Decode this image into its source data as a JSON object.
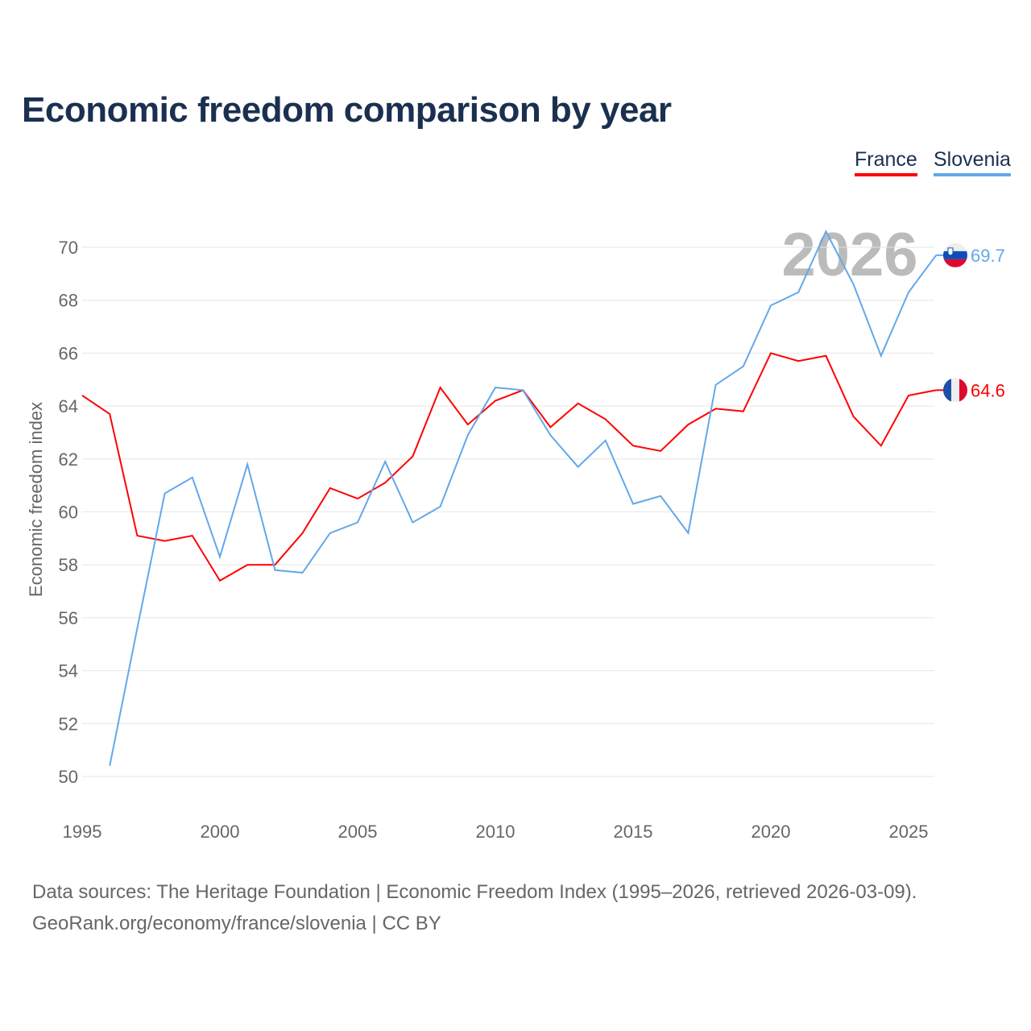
{
  "title": "Economic freedom comparison by year",
  "source_line1": "Data sources: The Heritage Foundation | Economic Freedom Index (1995–2026, retrieved 2026-03-09).",
  "source_line2": "GeoRank.org/economy/france/slovenia | CC BY",
  "chart_data": {
    "type": "line",
    "title": "Economic freedom comparison by year",
    "xlabel": "",
    "ylabel": "Economic freedom index",
    "xlim": [
      1995,
      2026
    ],
    "ylim": [
      50,
      70
    ],
    "xticks": [
      1995,
      2000,
      2005,
      2010,
      2015,
      2020,
      2025
    ],
    "yticks": [
      50,
      52,
      54,
      56,
      58,
      60,
      62,
      64,
      66,
      68,
      70
    ],
    "year_watermark": "2026",
    "legend": "top-right",
    "series": [
      {
        "name": "France",
        "color": "#ff0000",
        "end_label": "64.6",
        "x": [
          1995,
          1996,
          1997,
          1998,
          1999,
          2000,
          2001,
          2002,
          2003,
          2004,
          2005,
          2006,
          2007,
          2008,
          2009,
          2010,
          2011,
          2012,
          2013,
          2014,
          2015,
          2016,
          2017,
          2018,
          2019,
          2020,
          2021,
          2022,
          2023,
          2024,
          2025,
          2026
        ],
        "values": [
          64.4,
          63.7,
          59.1,
          58.9,
          59.1,
          57.4,
          58.0,
          58.0,
          59.2,
          60.9,
          60.5,
          61.1,
          62.1,
          64.7,
          63.3,
          64.2,
          64.6,
          63.2,
          64.1,
          63.5,
          62.5,
          62.3,
          63.3,
          63.9,
          63.8,
          66.0,
          65.7,
          65.9,
          63.6,
          62.5,
          64.4,
          64.6
        ]
      },
      {
        "name": "Slovenia",
        "color": "#63a8ea",
        "end_label": "69.7",
        "x": [
          1996,
          1997,
          1998,
          1999,
          2000,
          2001,
          2002,
          2003,
          2004,
          2005,
          2006,
          2007,
          2008,
          2009,
          2010,
          2011,
          2012,
          2013,
          2014,
          2015,
          2016,
          2017,
          2018,
          2019,
          2020,
          2021,
          2022,
          2023,
          2024,
          2025,
          2026
        ],
        "values": [
          50.4,
          55.6,
          60.7,
          61.3,
          58.3,
          61.8,
          57.8,
          57.7,
          59.2,
          59.6,
          61.9,
          59.6,
          60.2,
          62.9,
          64.7,
          64.6,
          62.9,
          61.7,
          62.7,
          60.3,
          60.6,
          59.2,
          64.8,
          65.5,
          67.8,
          68.3,
          70.6,
          68.6,
          65.9,
          68.3,
          69.7
        ]
      }
    ]
  }
}
